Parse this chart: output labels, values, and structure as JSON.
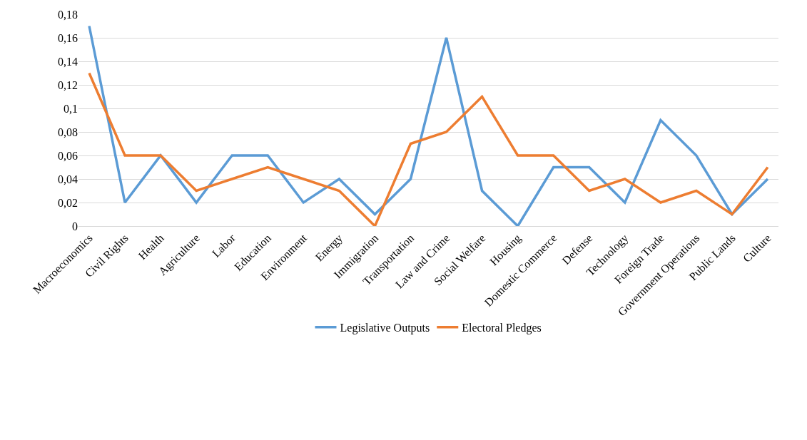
{
  "chart_data": {
    "type": "line",
    "categories": [
      "Macroeconomics",
      "Civil Rights",
      "Health",
      "Agriculture",
      "Labor",
      "Education",
      "Environment",
      "Energy",
      "Immigration",
      "Transportation",
      "Law and Crime",
      "Social Welfare",
      "Housing",
      "Domestic Commerce",
      "Defense",
      "Technology",
      "Foreign Trade",
      "Government Operations",
      "Public Lands",
      "Culture"
    ],
    "series": [
      {
        "name": "Legislative Outputs",
        "color": "#5b9bd5",
        "values": [
          0.17,
          0.02,
          0.06,
          0.02,
          0.06,
          0.06,
          0.02,
          0.04,
          0.01,
          0.04,
          0.16,
          0.03,
          0,
          0.05,
          0.05,
          0.02,
          0.09,
          0.06,
          0.01,
          0.04
        ]
      },
      {
        "name": "Electoral Pledges",
        "color": "#ed7d31",
        "values": [
          0.13,
          0.06,
          0.06,
          0.03,
          0.04,
          0.05,
          0.04,
          0.03,
          0,
          0.07,
          0.08,
          0.11,
          0.06,
          0.06,
          0.03,
          0.04,
          0.02,
          0.03,
          0.01,
          0.05
        ]
      }
    ],
    "ylim": [
      0,
      0.18
    ],
    "yticks": [
      {
        "value": 0,
        "label": "0"
      },
      {
        "value": 0.02,
        "label": "0,02"
      },
      {
        "value": 0.04,
        "label": "0,04"
      },
      {
        "value": 0.06,
        "label": "0,06"
      },
      {
        "value": 0.08,
        "label": "0,08"
      },
      {
        "value": 0.1,
        "label": "0,1"
      },
      {
        "value": 0.12,
        "label": "0,12"
      },
      {
        "value": 0.14,
        "label": "0,14"
      },
      {
        "value": 0.16,
        "label": "0,16"
      },
      {
        "value": 0.18,
        "label": "0,18"
      }
    ],
    "grid": "y",
    "legend": "bottom",
    "marker": "none",
    "line_style": "solid"
  }
}
